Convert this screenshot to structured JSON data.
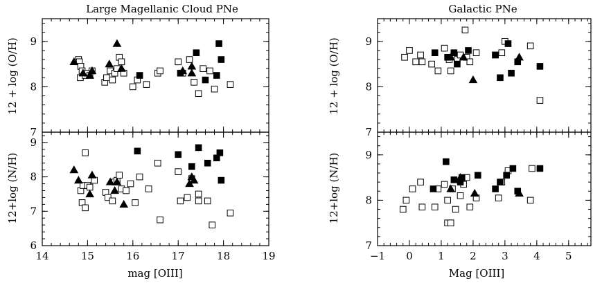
{
  "figure": {
    "left_title": "Large Magellanic Cloud PNe",
    "right_title": "Galactic PNe",
    "left_xlabel": "mag [OIII]",
    "right_xlabel": "Mag [OIII]",
    "top_ylabel": "12 + log (O/H)",
    "bottom_ylabel": "12+log (N/H)"
  },
  "chart_data": [
    {
      "type": "scatter",
      "title": "Large Magellanic Cloud PNe",
      "xlabel": "",
      "ylabel": "12 + log (O/H)",
      "xlim": [
        14,
        19
      ],
      "ylim": [
        7,
        9.5
      ],
      "x_ticks": [
        14,
        15,
        16,
        17,
        18,
        19
      ],
      "y_ticks": [
        7,
        8,
        9
      ],
      "series": [
        {
          "marker": "open-square",
          "points": [
            [
              14.8,
              8.6
            ],
            [
              14.82,
              8.55
            ],
            [
              14.85,
              8.45
            ],
            [
              14.88,
              8.35
            ],
            [
              14.84,
              8.2
            ],
            [
              14.95,
              8.25
            ],
            [
              15.0,
              8.3
            ],
            [
              15.05,
              8.25
            ],
            [
              15.1,
              8.35
            ],
            [
              15.38,
              8.1
            ],
            [
              15.42,
              8.2
            ],
            [
              15.5,
              8.35
            ],
            [
              15.55,
              8.15
            ],
            [
              15.6,
              8.3
            ],
            [
              15.65,
              8.4
            ],
            [
              15.7,
              8.65
            ],
            [
              15.75,
              8.55
            ],
            [
              15.8,
              8.3
            ],
            [
              16.0,
              8.0
            ],
            [
              16.1,
              8.15
            ],
            [
              16.3,
              8.05
            ],
            [
              16.55,
              8.3
            ],
            [
              16.6,
              8.35
            ],
            [
              17.0,
              8.55
            ],
            [
              17.1,
              8.3
            ],
            [
              17.25,
              8.6
            ],
            [
              17.35,
              8.1
            ],
            [
              17.45,
              7.85
            ],
            [
              17.55,
              8.4
            ],
            [
              17.7,
              8.35
            ],
            [
              17.8,
              7.95
            ],
            [
              18.15,
              8.05
            ]
          ]
        },
        {
          "marker": "filled-square",
          "points": [
            [
              16.15,
              8.25
            ],
            [
              17.05,
              8.3
            ],
            [
              17.4,
              8.75
            ],
            [
              17.6,
              8.15
            ],
            [
              17.85,
              8.25
            ],
            [
              17.9,
              8.95
            ],
            [
              17.95,
              8.6
            ]
          ]
        },
        {
          "marker": "filled-triangle",
          "points": [
            [
              14.7,
              8.55
            ],
            [
              14.9,
              8.3
            ],
            [
              15.05,
              8.25
            ],
            [
              15.1,
              8.35
            ],
            [
              15.48,
              8.5
            ],
            [
              15.65,
              8.95
            ],
            [
              15.75,
              8.4
            ],
            [
              17.1,
              8.35
            ],
            [
              17.3,
              8.3
            ],
            [
              17.3,
              8.45
            ]
          ]
        }
      ]
    },
    {
      "type": "scatter",
      "title": "",
      "xlabel": "mag [OIII]",
      "ylabel": "12+log (N/H)",
      "xlim": [
        14,
        19
      ],
      "ylim": [
        6,
        9.3
      ],
      "x_ticks": [
        14,
        15,
        16,
        17,
        18,
        19
      ],
      "y_ticks": [
        6,
        7,
        8,
        9
      ],
      "series": [
        {
          "marker": "open-square",
          "points": [
            [
              14.85,
              7.6
            ],
            [
              14.88,
              7.25
            ],
            [
              14.9,
              7.75
            ],
            [
              14.95,
              7.1
            ],
            [
              14.95,
              8.7
            ],
            [
              15.0,
              7.75
            ],
            [
              15.05,
              7.7
            ],
            [
              15.15,
              7.9
            ],
            [
              15.4,
              7.55
            ],
            [
              15.45,
              7.4
            ],
            [
              15.55,
              7.3
            ],
            [
              15.6,
              7.85
            ],
            [
              15.65,
              7.9
            ],
            [
              15.7,
              8.05
            ],
            [
              15.75,
              7.65
            ],
            [
              15.85,
              7.6
            ],
            [
              15.95,
              7.8
            ],
            [
              16.05,
              7.25
            ],
            [
              16.15,
              8.0
            ],
            [
              16.35,
              7.65
            ],
            [
              16.55,
              8.4
            ],
            [
              16.6,
              6.75
            ],
            [
              17.0,
              8.15
            ],
            [
              17.05,
              7.3
            ],
            [
              17.2,
              7.4
            ],
            [
              17.3,
              7.95
            ],
            [
              17.45,
              7.3
            ],
            [
              17.45,
              7.5
            ],
            [
              17.65,
              7.3
            ],
            [
              17.75,
              6.6
            ],
            [
              18.15,
              6.95
            ]
          ]
        },
        {
          "marker": "filled-square",
          "points": [
            [
              16.1,
              8.75
            ],
            [
              17.0,
              8.65
            ],
            [
              17.3,
              8.3
            ],
            [
              17.45,
              8.85
            ],
            [
              17.65,
              8.4
            ],
            [
              17.85,
              8.55
            ],
            [
              17.92,
              8.7
            ],
            [
              17.95,
              7.9
            ]
          ]
        },
        {
          "marker": "filled-triangle",
          "points": [
            [
              14.7,
              8.2
            ],
            [
              14.8,
              7.9
            ],
            [
              15.05,
              7.5
            ],
            [
              15.1,
              8.05
            ],
            [
              15.5,
              7.85
            ],
            [
              15.6,
              7.6
            ],
            [
              15.65,
              7.85
            ],
            [
              15.8,
              7.2
            ],
            [
              17.25,
              7.8
            ],
            [
              17.3,
              8.0
            ],
            [
              17.35,
              7.9
            ]
          ]
        }
      ]
    },
    {
      "type": "scatter",
      "title": "Galactic PNe",
      "xlabel": "",
      "ylabel": "12 + log (O/H)",
      "xlim": [
        -1,
        5.7
      ],
      "ylim": [
        7,
        9.5
      ],
      "x_ticks": [
        -1,
        0,
        1,
        2,
        3,
        4,
        5
      ],
      "y_ticks": [
        7,
        8,
        9
      ],
      "series": [
        {
          "marker": "open-square",
          "points": [
            [
              -0.15,
              8.65
            ],
            [
              0.0,
              8.8
            ],
            [
              0.2,
              8.55
            ],
            [
              0.35,
              8.7
            ],
            [
              0.4,
              8.55
            ],
            [
              0.7,
              8.5
            ],
            [
              0.9,
              8.35
            ],
            [
              1.1,
              8.85
            ],
            [
              1.25,
              8.6
            ],
            [
              1.3,
              8.35
            ],
            [
              1.5,
              8.6
            ],
            [
              1.6,
              8.7
            ],
            [
              1.75,
              9.25
            ],
            [
              1.8,
              8.65
            ],
            [
              1.9,
              8.55
            ],
            [
              2.1,
              8.75
            ],
            [
              2.7,
              8.7
            ],
            [
              2.9,
              8.75
            ],
            [
              3.0,
              9.0
            ],
            [
              3.8,
              8.9
            ],
            [
              4.1,
              7.7
            ]
          ]
        },
        {
          "marker": "filled-square",
          "points": [
            [
              0.8,
              8.75
            ],
            [
              1.2,
              8.65
            ],
            [
              1.4,
              8.75
            ],
            [
              1.5,
              8.5
            ],
            [
              1.85,
              8.8
            ],
            [
              2.7,
              8.7
            ],
            [
              2.85,
              8.2
            ],
            [
              3.1,
              8.95
            ],
            [
              3.2,
              8.3
            ],
            [
              3.4,
              8.55
            ],
            [
              4.1,
              8.45
            ]
          ]
        },
        {
          "marker": "filled-triangle",
          "points": [
            [
              1.3,
              8.65
            ],
            [
              1.7,
              8.65
            ],
            [
              2.0,
              8.15
            ],
            [
              3.45,
              8.65
            ]
          ]
        }
      ]
    },
    {
      "type": "scatter",
      "title": "",
      "xlabel": "Mag [OIII]",
      "ylabel": "12+log (N/H)",
      "xlim": [
        -1,
        5.7
      ],
      "ylim": [
        7,
        9.5
      ],
      "x_ticks": [
        -1,
        0,
        1,
        2,
        3,
        4,
        5
      ],
      "y_ticks": [
        7,
        8,
        9
      ],
      "series": [
        {
          "marker": "open-square",
          "points": [
            [
              -0.2,
              7.8
            ],
            [
              -0.1,
              8.0
            ],
            [
              0.1,
              8.25
            ],
            [
              0.35,
              8.4
            ],
            [
              0.4,
              7.85
            ],
            [
              0.8,
              7.85
            ],
            [
              0.9,
              8.25
            ],
            [
              1.1,
              8.35
            ],
            [
              1.2,
              8.0
            ],
            [
              1.2,
              7.5
            ],
            [
              1.3,
              7.5
            ],
            [
              1.35,
              8.25
            ],
            [
              1.45,
              7.8
            ],
            [
              1.6,
              8.1
            ],
            [
              1.7,
              8.35
            ],
            [
              1.8,
              8.5
            ],
            [
              1.9,
              7.85
            ],
            [
              2.1,
              8.05
            ],
            [
              2.8,
              8.05
            ],
            [
              2.9,
              8.4
            ],
            [
              3.1,
              8.65
            ],
            [
              3.8,
              8.0
            ],
            [
              3.85,
              8.7
            ]
          ]
        },
        {
          "marker": "filled-square",
          "points": [
            [
              0.75,
              8.25
            ],
            [
              1.15,
              8.85
            ],
            [
              1.4,
              8.45
            ],
            [
              1.6,
              8.4
            ],
            [
              1.65,
              8.5
            ],
            [
              2.15,
              8.55
            ],
            [
              2.7,
              8.25
            ],
            [
              2.85,
              8.4
            ],
            [
              3.05,
              8.55
            ],
            [
              3.25,
              8.7
            ],
            [
              3.4,
              8.2
            ],
            [
              4.1,
              8.7
            ]
          ]
        },
        {
          "marker": "filled-triangle",
          "points": [
            [
              1.3,
              8.25
            ],
            [
              1.6,
              8.5
            ],
            [
              2.05,
              8.15
            ],
            [
              3.45,
              8.15
            ]
          ]
        }
      ]
    }
  ]
}
